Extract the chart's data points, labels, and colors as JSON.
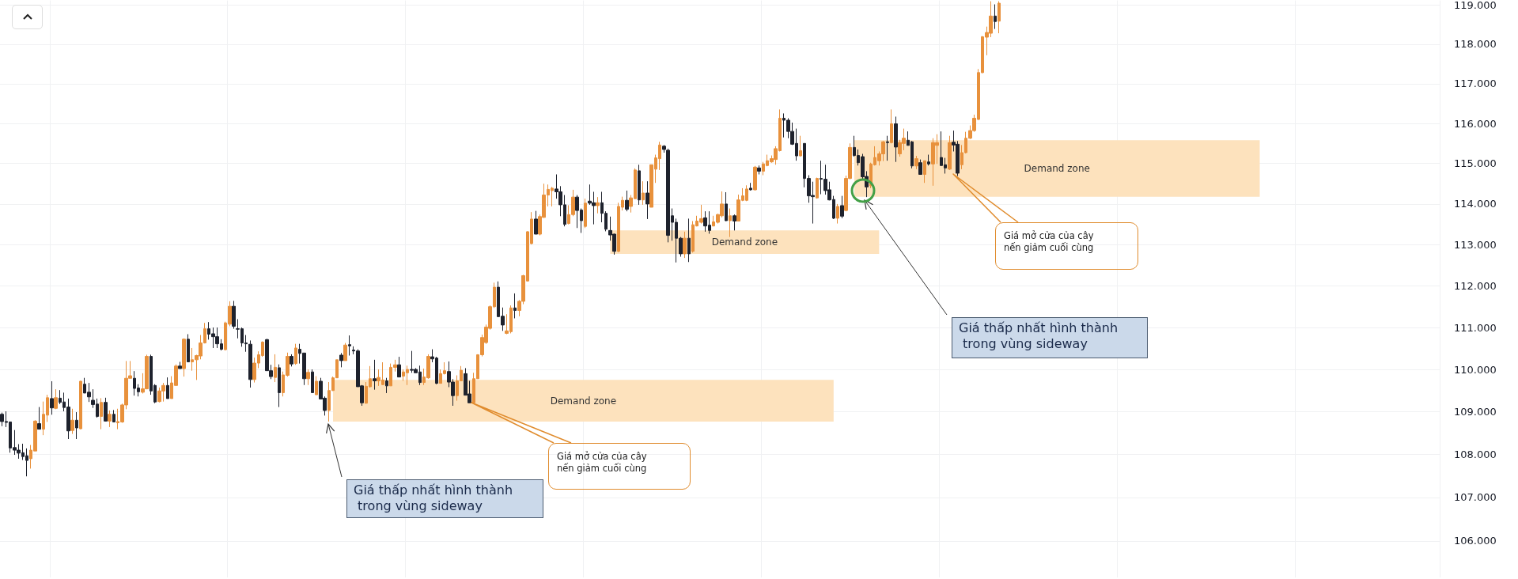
{
  "chart_data": {
    "type": "candlestick",
    "log": true,
    "grid": true,
    "tick_labels": "y",
    "categories": [
      null,
      null,
      null,
      null,
      null,
      null,
      null,
      null,
      null,
      null,
      null,
      null,
      null,
      null,
      null,
      null,
      null,
      null,
      null,
      null,
      null,
      null,
      null,
      null,
      null,
      null,
      null,
      null,
      null,
      null,
      null,
      null,
      null,
      null,
      null,
      null,
      null,
      null,
      null,
      null,
      null,
      null,
      null,
      null,
      null,
      null,
      null,
      null,
      null,
      null,
      null,
      null,
      null,
      null,
      null,
      null,
      null,
      null,
      null,
      null,
      null,
      null,
      null,
      null,
      null,
      null,
      null,
      null,
      null,
      null,
      null,
      null,
      null,
      null,
      null,
      null,
      null,
      null,
      null,
      null,
      null,
      null,
      null,
      null,
      null,
      null,
      null,
      null,
      null,
      null,
      null,
      null,
      null,
      null,
      null,
      null,
      null,
      null,
      null,
      null,
      null,
      null,
      null,
      null,
      null,
      null,
      null,
      null,
      null,
      null,
      null,
      null,
      null,
      null,
      null,
      null,
      null,
      null,
      null,
      null,
      null,
      null,
      null,
      null,
      null,
      null,
      null,
      null,
      null,
      null,
      null,
      null,
      null,
      null,
      null,
      null,
      null,
      null,
      null,
      null,
      null,
      null,
      null,
      null,
      null,
      null,
      null,
      null,
      null,
      null,
      null,
      null,
      null,
      null,
      null,
      null,
      null,
      null,
      null,
      null,
      null,
      null,
      null,
      null,
      null,
      null,
      null,
      null,
      null,
      null,
      null,
      null,
      null,
      null,
      null,
      null,
      null,
      null,
      null,
      null,
      null,
      null,
      null,
      null,
      null,
      null,
      null,
      null,
      null,
      null,
      null,
      null,
      null,
      null,
      null,
      null,
      null,
      null,
      null,
      null,
      null,
      null,
      null,
      null,
      null,
      null,
      null,
      null,
      null,
      null,
      null,
      null,
      null,
      null,
      null,
      null,
      null,
      null,
      null,
      null,
      null,
      null,
      null,
      null,
      null,
      null,
      null,
      null,
      null,
      null,
      null,
      null,
      null,
      null,
      null,
      null,
      null,
      null,
      null,
      null,
      null,
      null,
      null,
      null,
      null,
      null,
      null,
      null,
      null,
      null,
      null,
      null,
      null,
      null,
      null,
      null,
      null,
      null,
      null,
      null,
      null,
      null,
      null,
      null,
      null,
      null,
      null,
      null,
      null,
      null,
      null,
      null,
      null,
      null,
      null,
      null,
      null,
      null,
      null,
      null,
      null,
      null,
      null,
      null,
      null,
      null,
      null,
      null,
      null,
      null,
      null,
      null,
      null,
      null,
      null,
      null,
      null,
      null,
      null,
      null,
      null,
      null,
      null,
      null,
      null,
      null,
      null,
      null,
      null,
      null,
      null,
      null,
      null,
      null,
      null,
      null,
      null,
      null,
      null,
      null,
      null,
      null,
      null,
      null,
      null,
      null,
      null,
      null,
      null,
      null,
      null,
      null,
      null,
      null,
      null,
      null,
      null,
      null,
      null,
      null,
      null,
      null,
      null,
      null,
      null,
      null,
      null,
      null
    ],
    "ohlc": [
      [
        108.94,
        108.98,
        108.66,
        108.77
      ],
      [
        108.77,
        109.01,
        108.64,
        108.75
      ],
      [
        108.76,
        108.76,
        108.04,
        108.15
      ],
      [
        108.16,
        108.57,
        107.99,
        108.1
      ],
      [
        108.1,
        108.24,
        107.9,
        108.03
      ],
      [
        108.04,
        108.25,
        107.87,
        107.95
      ],
      [
        107.97,
        108.14,
        107.49,
        107.86
      ],
      [
        107.9,
        108.22,
        107.67,
        108.1
      ],
      [
        108.08,
        108.8,
        108.08,
        108.78
      ],
      [
        108.72,
        109.11,
        108.59,
        108.59
      ],
      [
        108.59,
        109.24,
        108.45,
        108.94
      ],
      [
        108.92,
        109.4,
        108.76,
        109.33
      ],
      [
        109.31,
        109.72,
        108.93,
        109.09
      ],
      [
        109.08,
        109.53,
        109.06,
        109.33
      ],
      [
        109.32,
        109.51,
        109.18,
        109.22
      ],
      [
        109.23,
        109.45,
        109.01,
        109.1
      ],
      [
        109.11,
        109.31,
        108.36,
        108.55
      ],
      [
        108.56,
        109.07,
        108.48,
        108.8
      ],
      [
        108.8,
        108.99,
        108.36,
        108.62
      ],
      [
        108.6,
        109.73,
        108.59,
        109.72
      ],
      [
        109.65,
        109.8,
        109.44,
        109.44
      ],
      [
        109.46,
        109.68,
        109.23,
        109.35
      ],
      [
        109.27,
        109.53,
        109.09,
        109.17
      ],
      [
        109.18,
        109.31,
        108.86,
        108.89
      ],
      [
        108.89,
        109.32,
        108.59,
        109.22
      ],
      [
        109.22,
        109.33,
        108.77,
        108.78
      ],
      [
        108.78,
        109.03,
        108.64,
        108.94
      ],
      [
        108.94,
        109.04,
        108.75,
        108.76
      ],
      [
        108.74,
        109.07,
        108.59,
        108.77
      ],
      [
        108.76,
        109.19,
        108.74,
        109.16
      ],
      [
        109.16,
        110.2,
        109.06,
        109.79
      ],
      [
        109.79,
        110.2,
        109.79,
        109.85
      ],
      [
        109.79,
        109.96,
        109.38,
        109.55
      ],
      [
        109.56,
        109.65,
        109.36,
        109.47
      ],
      [
        109.46,
        109.91,
        109.43,
        109.54
      ],
      [
        109.54,
        110.35,
        109.53,
        110.31
      ],
      [
        110.31,
        110.35,
        109.4,
        109.49
      ],
      [
        109.62,
        109.65,
        109.2,
        109.23
      ],
      [
        109.24,
        109.57,
        109.22,
        109.49
      ],
      [
        109.49,
        109.68,
        109.24,
        109.62
      ],
      [
        109.62,
        109.81,
        109.31,
        109.31
      ],
      [
        109.31,
        109.84,
        109.31,
        109.68
      ],
      [
        109.62,
        110.12,
        109.62,
        110.08
      ],
      [
        110.08,
        110.18,
        110.02,
        110.02
      ],
      [
        110.02,
        110.74,
        109.83,
        110.72
      ],
      [
        110.72,
        110.84,
        110.18,
        110.18
      ],
      [
        110.18,
        110.51,
        109.97,
        110.23
      ],
      [
        110.23,
        110.35,
        109.75,
        110.33
      ],
      [
        110.32,
        110.82,
        110.24,
        110.63
      ],
      [
        110.63,
        111.11,
        110.62,
        110.97
      ],
      [
        110.97,
        111.13,
        110.71,
        110.84
      ],
      [
        110.85,
        111.0,
        110.51,
        110.78
      ],
      [
        110.78,
        111.0,
        110.51,
        110.61
      ],
      [
        110.61,
        110.72,
        110.45,
        110.48
      ],
      [
        110.47,
        111.14,
        110.45,
        111.11
      ],
      [
        111.08,
        111.63,
        111.03,
        111.51
      ],
      [
        111.51,
        111.64,
        110.97,
        111.03
      ],
      [
        110.97,
        111.2,
        110.74,
        110.96
      ],
      [
        110.97,
        111.0,
        110.54,
        110.63
      ],
      [
        110.63,
        110.82,
        110.42,
        110.61
      ],
      [
        110.6,
        110.69,
        109.57,
        109.76
      ],
      [
        109.76,
        110.28,
        109.69,
        110.15
      ],
      [
        110.15,
        110.43,
        110.03,
        110.35
      ],
      [
        110.33,
        110.67,
        110.3,
        110.65
      ],
      [
        110.71,
        110.73,
        109.97,
        109.97
      ],
      [
        109.97,
        110.11,
        109.77,
        109.83
      ],
      [
        109.81,
        110.36,
        109.7,
        110.05
      ],
      [
        110.04,
        110.12,
        109.11,
        109.45
      ],
      [
        109.45,
        109.95,
        109.36,
        109.87
      ],
      [
        109.86,
        110.4,
        109.83,
        110.31
      ],
      [
        110.31,
        110.36,
        110.07,
        110.13
      ],
      [
        110.14,
        110.61,
        110.11,
        110.51
      ],
      [
        110.48,
        110.61,
        110.14,
        110.38
      ],
      [
        110.39,
        110.39,
        109.63,
        109.78
      ],
      [
        109.78,
        110.0,
        109.63,
        109.93
      ],
      [
        109.94,
        110.0,
        109.45,
        109.45
      ],
      [
        109.4,
        109.84,
        109.4,
        109.72
      ],
      [
        109.72,
        109.8,
        109.3,
        109.3
      ],
      [
        109.32,
        109.36,
        108.91,
        109.03
      ],
      [
        109.03,
        109.7,
        108.77,
        109.5
      ],
      [
        109.5,
        109.83,
        109.49,
        109.8
      ],
      [
        109.8,
        110.23,
        109.8,
        110.23
      ],
      [
        110.34,
        110.39,
        110.05,
        110.21
      ],
      [
        110.21,
        110.63,
        110.21,
        110.58
      ],
      [
        110.59,
        110.81,
        110.33,
        110.56
      ],
      [
        110.46,
        110.55,
        110.36,
        110.44
      ],
      [
        110.44,
        110.48,
        109.59,
        109.59
      ],
      [
        109.61,
        109.63,
        109.14,
        109.21
      ],
      [
        109.2,
        109.7,
        109.19,
        109.6
      ],
      [
        109.59,
        110.08,
        109.57,
        109.78
      ],
      [
        109.78,
        110.23,
        109.52,
        109.73
      ],
      [
        109.73,
        110.0,
        109.61,
        109.81
      ],
      [
        109.64,
        110.17,
        109.63,
        109.75
      ],
      [
        109.73,
        109.8,
        109.44,
        109.61
      ],
      [
        109.61,
        110.14,
        109.61,
        110.05
      ],
      [
        110.05,
        110.23,
        109.95,
        110.11
      ],
      [
        110.11,
        110.3,
        109.82,
        109.82
      ],
      [
        109.84,
        110.0,
        109.73,
        109.94
      ],
      [
        109.92,
        110.09,
        109.63,
        110.0
      ],
      [
        110.0,
        110.44,
        109.92,
        109.98
      ],
      [
        110.0,
        110.03,
        109.92,
        109.92
      ],
      [
        109.94,
        110.09,
        109.63,
        109.69
      ],
      [
        109.69,
        110.02,
        109.63,
        109.82
      ],
      [
        109.8,
        110.36,
        109.78,
        110.31
      ],
      [
        110.3,
        110.48,
        110.17,
        110.25
      ],
      [
        110.27,
        110.3,
        109.65,
        109.67
      ],
      [
        109.67,
        110.0,
        109.67,
        109.9
      ],
      [
        109.9,
        110.17,
        109.88,
        109.97
      ],
      [
        109.95,
        110.19,
        109.58,
        109.7
      ],
      [
        109.7,
        109.77,
        109.14,
        109.38
      ],
      [
        109.38,
        109.86,
        109.26,
        109.73
      ],
      [
        109.73,
        110.08,
        109.73,
        109.98
      ],
      [
        109.9,
        110.03,
        109.39,
        109.39
      ],
      [
        109.42,
        109.73,
        109.21,
        109.21
      ],
      [
        109.21,
        109.92,
        109.21,
        109.78
      ],
      [
        109.78,
        110.36,
        109.78,
        110.35
      ],
      [
        110.35,
        110.83,
        110.31,
        110.76
      ],
      [
        110.64,
        111.07,
        110.61,
        111.01
      ],
      [
        110.98,
        111.53,
        110.95,
        111.5
      ],
      [
        111.5,
        112.08,
        111.47,
        111.97
      ],
      [
        111.97,
        112.11,
        111.26,
        111.26
      ],
      [
        111.27,
        111.48,
        110.92,
        111.06
      ],
      [
        110.86,
        111.32,
        110.84,
        110.92
      ],
      [
        110.9,
        111.53,
        110.86,
        111.47
      ],
      [
        111.47,
        111.82,
        111.22,
        111.41
      ],
      [
        111.41,
        111.66,
        111.27,
        111.63
      ],
      [
        111.63,
        112.27,
        111.56,
        112.25
      ],
      [
        112.12,
        113.33,
        112.11,
        113.32
      ],
      [
        113.03,
        113.8,
        113.01,
        113.63
      ],
      [
        113.63,
        113.83,
        113.26,
        113.26
      ],
      [
        113.26,
        113.74,
        113.23,
        113.69
      ],
      [
        113.67,
        114.5,
        113.66,
        114.22
      ],
      [
        114.22,
        114.48,
        113.94,
        114.36
      ],
      [
        114.33,
        114.42,
        113.94,
        114.39
      ],
      [
        114.37,
        114.73,
        114.13,
        114.3
      ],
      [
        114.3,
        114.44,
        113.7,
        113.98
      ],
      [
        113.98,
        114.22,
        113.45,
        113.5
      ],
      [
        113.52,
        113.97,
        113.5,
        113.74
      ],
      [
        113.74,
        114.35,
        113.7,
        114.17
      ],
      [
        114.17,
        114.22,
        113.41,
        113.84
      ],
      [
        113.85,
        113.89,
        113.29,
        113.59
      ],
      [
        113.45,
        114.13,
        113.41,
        114.02
      ],
      [
        114.07,
        114.48,
        113.98,
        114.02
      ],
      [
        114.03,
        114.3,
        113.5,
        113.96
      ],
      [
        113.96,
        114.17,
        113.77,
        114.03
      ],
      [
        114.03,
        114.3,
        113.55,
        113.77
      ],
      [
        113.77,
        113.82,
        113.33,
        113.38
      ],
      [
        113.35,
        113.69,
        113.1,
        113.24
      ],
      [
        113.26,
        113.27,
        112.76,
        112.84
      ],
      [
        112.84,
        114.03,
        112.82,
        113.94
      ],
      [
        113.92,
        114.18,
        113.84,
        114.09
      ],
      [
        114.09,
        114.33,
        113.82,
        113.87
      ],
      [
        113.94,
        114.22,
        113.79,
        114.15
      ],
      [
        114.13,
        114.88,
        114.13,
        114.84
      ],
      [
        114.82,
        114.97,
        113.98,
        114.1
      ],
      [
        114.1,
        114.56,
        113.98,
        114.27
      ],
      [
        114.27,
        114.56,
        113.63,
        114.0
      ],
      [
        113.92,
        114.97,
        113.92,
        114.97
      ],
      [
        114.86,
        115.22,
        114.52,
        115.14
      ],
      [
        115.12,
        115.54,
        114.84,
        115.46
      ],
      [
        115.43,
        115.46,
        115.27,
        115.35
      ],
      [
        115.33,
        115.37,
        113.06,
        113.23
      ],
      [
        113.71,
        113.89,
        113.1,
        113.55
      ],
      [
        113.55,
        113.64,
        112.57,
        113.16
      ],
      [
        113.16,
        113.19,
        112.71,
        112.78
      ],
      [
        112.78,
        113.32,
        112.68,
        113.16
      ],
      [
        113.16,
        113.64,
        112.58,
        112.78
      ],
      [
        112.84,
        113.58,
        112.81,
        113.49
      ],
      [
        113.46,
        113.71,
        113.45,
        113.58
      ],
      [
        113.55,
        113.98,
        113.52,
        113.64
      ],
      [
        113.66,
        113.82,
        113.32,
        113.46
      ],
      [
        113.48,
        113.82,
        113.27,
        113.35
      ],
      [
        113.46,
        113.71,
        113.45,
        113.56
      ],
      [
        113.55,
        113.76,
        113.52,
        113.74
      ],
      [
        113.71,
        114.31,
        113.67,
        114.0
      ],
      [
        114.0,
        114.29,
        113.58,
        113.59
      ],
      [
        113.59,
        113.89,
        113.19,
        113.71
      ],
      [
        113.71,
        113.74,
        113.35,
        113.58
      ],
      [
        113.58,
        114.23,
        113.58,
        114.1
      ],
      [
        114.09,
        114.39,
        114.07,
        114.2
      ],
      [
        114.09,
        114.46,
        114.07,
        114.37
      ],
      [
        114.39,
        114.52,
        114.33,
        114.35
      ],
      [
        114.35,
        114.94,
        114.33,
        114.91
      ],
      [
        114.89,
        114.95,
        114.73,
        114.81
      ],
      [
        114.81,
        115.04,
        114.71,
        114.99
      ],
      [
        114.95,
        115.22,
        114.93,
        115.07
      ],
      [
        115.04,
        115.2,
        115.02,
        115.12
      ],
      [
        115.1,
        115.43,
        114.97,
        115.37
      ],
      [
        115.32,
        116.35,
        115.3,
        116.13
      ],
      [
        116.13,
        116.25,
        115.65,
        116.08
      ],
      [
        116.08,
        116.13,
        115.63,
        115.8
      ],
      [
        115.8,
        116.02,
        115.46,
        115.48
      ],
      [
        115.5,
        115.87,
        115.07,
        115.19
      ],
      [
        115.19,
        115.69,
        115.17,
        115.32
      ],
      [
        115.5,
        115.5,
        114.41,
        114.63
      ],
      [
        114.63,
        114.71,
        114.03,
        114.2
      ],
      [
        114.21,
        114.55,
        113.52,
        114.18
      ],
      [
        114.15,
        114.65,
        114.13,
        114.63
      ],
      [
        114.63,
        115.07,
        114.24,
        114.61
      ],
      [
        114.61,
        114.97,
        114.23,
        114.33
      ],
      [
        114.35,
        114.55,
        114.09,
        114.1
      ],
      [
        114.11,
        114.2,
        113.63,
        113.65
      ],
      [
        113.65,
        114.0,
        113.52,
        113.94
      ],
      [
        113.96,
        114.2,
        113.65,
        113.7
      ],
      [
        113.84,
        114.7,
        113.82,
        114.63
      ],
      [
        114.63,
        115.5,
        114.61,
        115.4
      ],
      [
        115.4,
        115.69,
        115.17,
        115.2
      ],
      [
        115.2,
        115.35,
        114.95,
        115.02
      ],
      [
        115.17,
        115.24,
        114.61,
        114.67
      ],
      [
        114.68,
        114.81,
        114.17,
        114.42
      ],
      [
        114.45,
        115.02,
        114.39,
        114.99
      ],
      [
        114.97,
        115.43,
        114.95,
        115.15
      ],
      [
        115.07,
        115.3,
        114.95,
        115.24
      ],
      [
        115.24,
        115.56,
        115.06,
        115.54
      ],
      [
        115.54,
        115.69,
        115.07,
        115.52
      ],
      [
        115.52,
        116.35,
        115.5,
        115.99
      ],
      [
        115.99,
        116.17,
        115.04,
        115.41
      ],
      [
        115.24,
        115.59,
        115.17,
        115.52
      ],
      [
        115.5,
        115.87,
        115.33,
        115.63
      ],
      [
        115.58,
        115.8,
        115.45,
        115.45
      ],
      [
        115.54,
        115.56,
        114.88,
        114.94
      ],
      [
        114.94,
        115.19,
        114.86,
        115.12
      ],
      [
        115.02,
        115.1,
        114.73,
        114.73
      ],
      [
        114.73,
        115.07,
        114.52,
        115.07
      ],
      [
        115.04,
        115.22,
        114.95,
        114.99
      ],
      [
        114.99,
        115.63,
        114.45,
        115.52
      ],
      [
        115.45,
        115.73,
        114.99,
        115.52
      ],
      [
        115.15,
        115.8,
        114.94,
        114.95
      ],
      [
        114.97,
        115.14,
        114.75,
        114.89
      ],
      [
        114.86,
        115.69,
        114.84,
        115.52
      ],
      [
        115.53,
        115.82,
        115.3,
        115.46
      ],
      [
        115.48,
        115.56,
        114.69,
        114.76
      ],
      [
        114.97,
        115.46,
        114.86,
        115.27
      ],
      [
        115.27,
        115.79,
        115.25,
        115.63
      ],
      [
        115.63,
        115.95,
        115.61,
        115.82
      ],
      [
        115.82,
        116.22,
        115.79,
        116.13
      ],
      [
        116.1,
        117.37,
        116.09,
        117.28
      ],
      [
        117.28,
        118.21,
        117.26,
        118.19
      ],
      [
        118.18,
        118.45,
        117.72,
        118.3
      ],
      [
        118.28,
        119.1,
        118.18,
        118.72
      ],
      [
        118.72,
        119.02,
        118.39,
        118.58
      ],
      [
        118.59,
        119.1,
        118.28,
        119.05
      ],
      null,
      null,
      null,
      null,
      null,
      null,
      null,
      null,
      null,
      null,
      null,
      null,
      null,
      null,
      null,
      null,
      null,
      null,
      null,
      null,
      null,
      null,
      null,
      null,
      null,
      null,
      null,
      null,
      null,
      null,
      null,
      null,
      null,
      null,
      null,
      null,
      null,
      null,
      null,
      null,
      null,
      null,
      null,
      null,
      null,
      null,
      null,
      null,
      null,
      null,
      null,
      null,
      null,
      null,
      null,
      null,
      null,
      null,
      null,
      null,
      null,
      null,
      null,
      null,
      null,
      null,
      null,
      null,
      null,
      null,
      null,
      null,
      null,
      null,
      null,
      null,
      null,
      null,
      null,
      null,
      null,
      null,
      null,
      null,
      null,
      null,
      null,
      null,
      null,
      null,
      null,
      null,
      null,
      null,
      null,
      null,
      null,
      null,
      null,
      null,
      null,
      null,
      null,
      null,
      null,
      null
    ],
    "ylim": [
      105.17,
      119.12
    ],
    "yticks": [
      {
        "value": 106,
        "label": "106.000"
      },
      {
        "value": 107,
        "label": "107.000"
      },
      {
        "value": 108,
        "label": "108.000"
      },
      {
        "value": 109,
        "label": "109.000"
      },
      {
        "value": 110,
        "label": "110.000"
      },
      {
        "value": 111,
        "label": "111.000"
      },
      {
        "value": 112,
        "label": "112.000"
      },
      {
        "value": 113,
        "label": "113.000"
      },
      {
        "value": 114,
        "label": "114.000"
      },
      {
        "value": 115,
        "label": "115.000"
      },
      {
        "value": 116,
        "label": "116.000"
      },
      {
        "value": 117,
        "label": "117.000"
      },
      {
        "value": 118,
        "label": "118.000"
      },
      {
        "value": 119,
        "label": "119.000"
      }
    ],
    "bands": [
      {
        "axis": "y",
        "from": 108.77,
        "to": 109.75,
        "label": "Demand zone",
        "color": "#fde2bd"
      },
      {
        "axis": "y",
        "from": 112.78,
        "to": 113.35,
        "label": "Demand zone",
        "color": "#fde2bd"
      },
      {
        "axis": "y",
        "from": 114.18,
        "to": 115.58,
        "label": "Demand zone",
        "color": "#fde2bd"
      }
    ],
    "annotations": [
      "Giá thấp nhất hình thành\n trong vùng sideway",
      "Giá mở cửa của cây\nnến giảm cuối cùng",
      "Giá thấp nhất hình thành\n trong vùng sideway",
      "Giá mở cửa của cây\nnến giảm cuối cùng"
    ]
  }
}
